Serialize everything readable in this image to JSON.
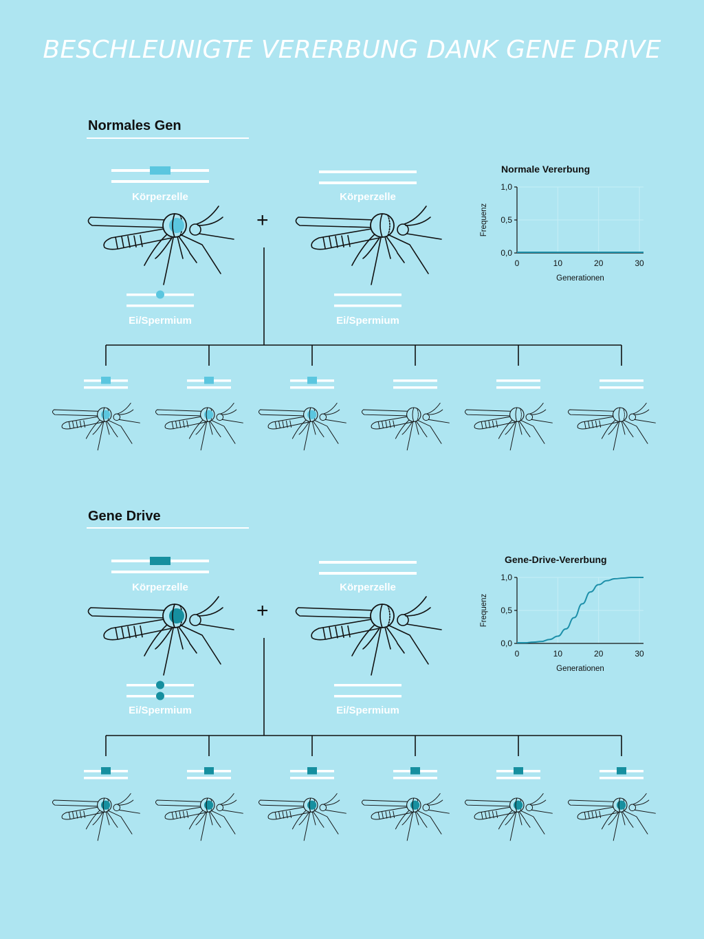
{
  "title": "BESCHLEUNIGTE VERERBUNG DANK GENE DRIVE",
  "colors": {
    "background": "#aee5f1",
    "gene_light": "#5bc6df",
    "gene_dark": "#168f9f",
    "line": "#111111",
    "white": "#ffffff"
  },
  "icons": {
    "organism": "mosquito-icon",
    "chromosome": "chromosome-pair-icon"
  },
  "sections": [
    {
      "heading": "Normales Gen",
      "plus": "+",
      "parent_left": {
        "cell_label": "Körperzelle",
        "gamete_label": "Ei/Spermium"
      },
      "parent_right": {
        "cell_label": "Körperzelle",
        "gamete_label": "Ei/Spermium"
      },
      "offspring_with_gene": [
        true,
        true,
        true,
        false,
        false,
        false
      ]
    },
    {
      "heading": "Gene Drive",
      "plus": "+",
      "parent_left": {
        "cell_label": "Körperzelle",
        "gamete_label": "Ei/Spermium"
      },
      "parent_right": {
        "cell_label": "Körperzelle",
        "gamete_label": "Ei/Spermium"
      },
      "offspring_with_gene": [
        true,
        true,
        true,
        true,
        true,
        true
      ]
    }
  ],
  "chart_data": [
    {
      "type": "line",
      "title": "Normale Vererbung",
      "xlabel": "Generationen",
      "ylabel": "Frequenz",
      "x_ticks": [
        "0",
        "10",
        "20",
        "30"
      ],
      "y_ticks": [
        "0,0",
        "0,5",
        "1,0"
      ],
      "xlim": [
        0,
        31
      ],
      "ylim": [
        0,
        1
      ],
      "grid": true,
      "series": [
        {
          "x": [
            0,
            5,
            10,
            15,
            20,
            25,
            31
          ],
          "y": [
            0.01,
            0.01,
            0.01,
            0.01,
            0.01,
            0.01,
            0.01
          ]
        }
      ]
    },
    {
      "type": "line",
      "title": "Gene-Drive-Vererbung",
      "xlabel": "Generationen",
      "ylabel": "Frequenz",
      "x_ticks": [
        "0",
        "10",
        "20",
        "30"
      ],
      "y_ticks": [
        "0,0",
        "0,5",
        "1,0"
      ],
      "xlim": [
        0,
        31
      ],
      "ylim": [
        0,
        1
      ],
      "grid": true,
      "series": [
        {
          "x": [
            0,
            2,
            4,
            6,
            8,
            10,
            12,
            14,
            16,
            18,
            20,
            22,
            24,
            26,
            28,
            31
          ],
          "y": [
            0.01,
            0.01,
            0.02,
            0.03,
            0.06,
            0.11,
            0.22,
            0.39,
            0.6,
            0.78,
            0.89,
            0.95,
            0.98,
            0.99,
            1.0,
            1.0
          ]
        }
      ]
    }
  ]
}
